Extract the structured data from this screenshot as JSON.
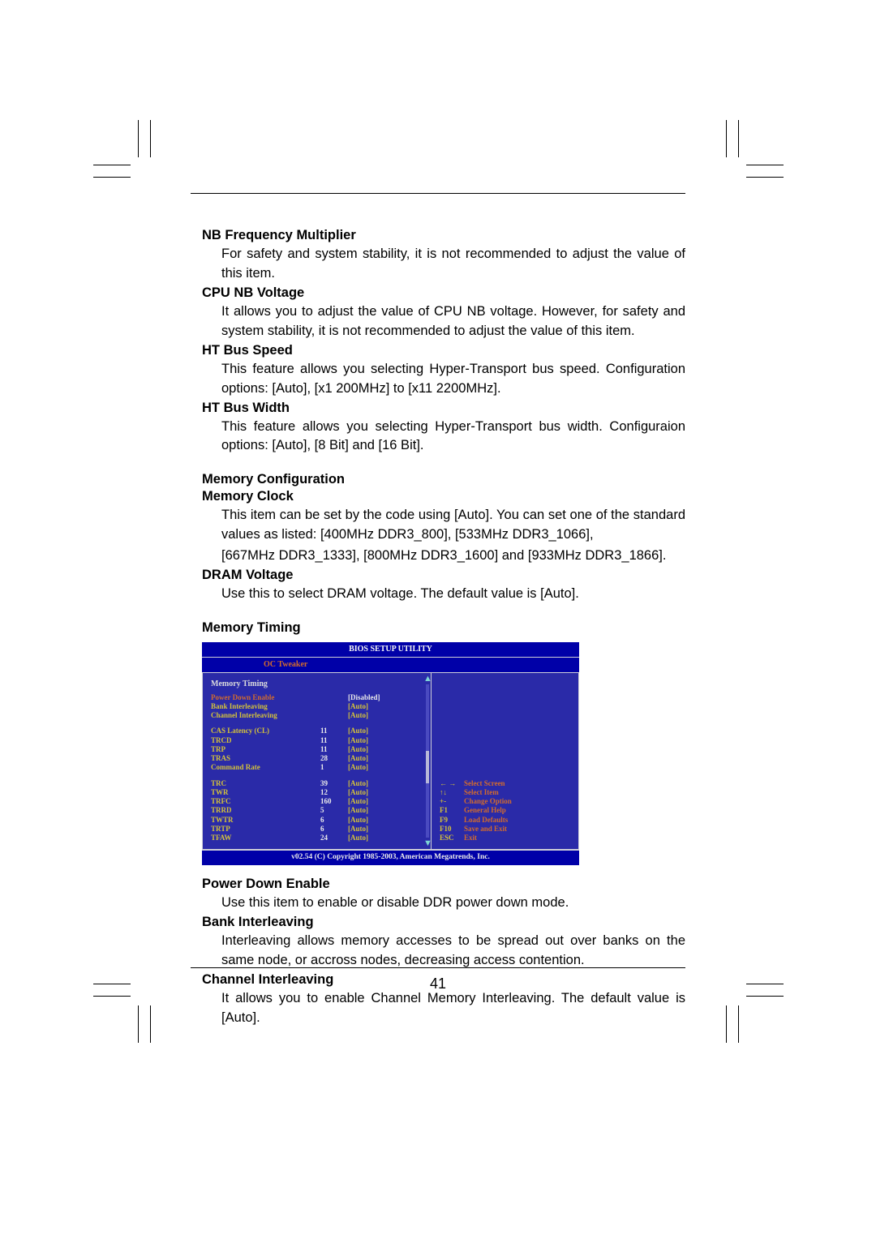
{
  "page_number": "41",
  "sections": [
    {
      "title": "NB Frequency Multiplier",
      "body": "For safety and system stability, it is not recommended to adjust the value of this item."
    },
    {
      "title": "CPU NB Voltage",
      "body": "It allows you to adjust the value of CPU NB voltage. However, for safety and system stability, it is not recommended to adjust the value of this item."
    },
    {
      "title": "HT Bus Speed",
      "body": "This feature allows you selecting Hyper-Transport bus speed. Configuration options: [Auto], [x1 200MHz] to [x11 2200MHz]."
    },
    {
      "title": "HT Bus Width",
      "body": "This feature allows you selecting Hyper-Transport bus width. Configuraion options: [Auto], [8 Bit] and [16 Bit]."
    }
  ],
  "mem_cfg_heading": "Memory Configuration",
  "mem_clock": {
    "title": "Memory Clock",
    "body1": "This item can be set by the code using [Auto]. You can set one of the standard values as listed: [400MHz DDR3_800], [533MHz DDR3_1066],",
    "body2": "[667MHz DDR3_1333], [800MHz DDR3_1600] and [933MHz DDR3_1866]."
  },
  "dram_voltage": {
    "title": "DRAM Voltage",
    "body": "Use this to select DRAM voltage. The default value is [Auto]."
  },
  "mem_timing_heading": "Memory Timing",
  "bios": {
    "header": "BIOS  SETUP  UTILITY",
    "tab": "OC Tweaker",
    "left_title": "Memory  Timing",
    "group_a": [
      {
        "name": "Power Down Enable",
        "num": "",
        "val": "[Disabled]",
        "name_color": "c-orange",
        "val_color": "c-white"
      },
      {
        "name": "Bank Interleaving",
        "num": "",
        "val": "[Auto]",
        "name_color": "c-yellow",
        "val_color": "c-yellow"
      },
      {
        "name": "Channel Interleaving",
        "num": "",
        "val": "[Auto]",
        "name_color": "c-yellow",
        "val_color": "c-yellow"
      }
    ],
    "group_b": [
      {
        "name": "CAS Latency (CL)",
        "num": "11",
        "val": "[Auto]",
        "name_color": "c-yellow",
        "val_color": "c-yellow"
      },
      {
        "name": "TRCD",
        "num": "11",
        "val": "[Auto]",
        "name_color": "c-yellow",
        "val_color": "c-yellow"
      },
      {
        "name": "TRP",
        "num": "11",
        "val": "[Auto]",
        "name_color": "c-yellow",
        "val_color": "c-yellow"
      },
      {
        "name": "TRAS",
        "num": "28",
        "val": "[Auto]",
        "name_color": "c-yellow",
        "val_color": "c-yellow"
      },
      {
        "name": "Command Rate",
        "num": "1",
        "val": "[Auto]",
        "name_color": "c-yellow",
        "val_color": "c-yellow"
      }
    ],
    "group_c": [
      {
        "name": "TRC",
        "num": "39",
        "val": "[Auto]",
        "name_color": "c-yellow",
        "val_color": "c-yellow"
      },
      {
        "name": "TWR",
        "num": "12",
        "val": "[Auto]",
        "name_color": "c-yellow",
        "val_color": "c-yellow"
      },
      {
        "name": "TRFC",
        "num": "160",
        "val": "[Auto]",
        "name_color": "c-yellow",
        "val_color": "c-yellow"
      },
      {
        "name": "TRRD",
        "num": "5",
        "val": "[Auto]",
        "name_color": "c-yellow",
        "val_color": "c-yellow"
      },
      {
        "name": "TWTR",
        "num": "6",
        "val": "[Auto]",
        "name_color": "c-yellow",
        "val_color": "c-yellow"
      },
      {
        "name": "TRTP",
        "num": "6",
        "val": "[Auto]",
        "name_color": "c-yellow",
        "val_color": "c-yellow"
      },
      {
        "name": "TFAW",
        "num": "24",
        "val": "[Auto]",
        "name_color": "c-yellow",
        "val_color": "c-yellow"
      }
    ],
    "help": [
      {
        "key": "← →",
        "label": "Select Screen",
        "key_color": "c-yellow",
        "label_color": "c-orange"
      },
      {
        "key": "↑↓",
        "label": "Select Item",
        "key_color": "c-yellow",
        "label_color": "c-orange"
      },
      {
        "key": "+-",
        "label": "Change Option",
        "key_color": "c-yellow",
        "label_color": "c-orange"
      },
      {
        "key": "F1",
        "label": "General Help",
        "key_color": "c-yellow",
        "label_color": "c-orange"
      },
      {
        "key": "F9",
        "label": "Load Defaults",
        "key_color": "c-yellow",
        "label_color": "c-orange"
      },
      {
        "key": "F10",
        "label": "Save and Exit",
        "key_color": "c-yellow",
        "label_color": "c-orange"
      },
      {
        "key": "ESC",
        "label": "Exit",
        "key_color": "c-yellow",
        "label_color": "c-orange"
      }
    ],
    "footer": "v02.54 (C) Copyright 1985-2003, American Megatrends, Inc."
  },
  "post_bios": [
    {
      "title": "Power Down Enable",
      "body": "Use this item to enable or disable DDR power down mode."
    },
    {
      "title": "Bank Interleaving",
      "body": "Interleaving allows memory accesses to be spread out over banks on the same node, or accross nodes, decreasing access contention."
    },
    {
      "title": "Channel Interleaving",
      "body": "It allows you to enable Channel Memory Interleaving. The default value is [Auto]."
    }
  ],
  "colors": {
    "bios_bg": "#0000a8",
    "bios_panel": "#2a2aa8",
    "orange": "#d26b2d",
    "yellow": "#d4c23a",
    "white": "#eaeaea"
  }
}
